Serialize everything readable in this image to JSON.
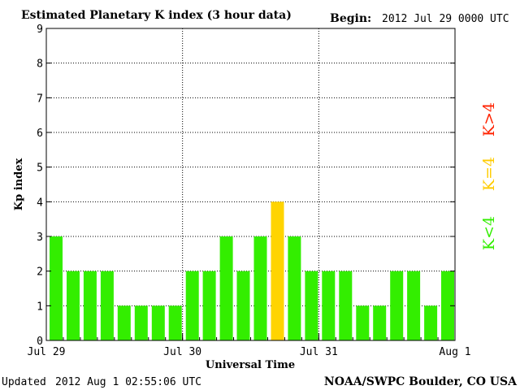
{
  "header": {
    "title": "Estimated Planetary K index (3 hour data)",
    "begin_label": "Begin:",
    "begin_value": "2012 Jul 29 0000 UTC"
  },
  "footer": {
    "updated_label": "Updated",
    "updated_value": "2012 Aug  1 02:55:06 UTC",
    "credit": "NOAA/SWPC Boulder, CO USA"
  },
  "legend": {
    "low": {
      "text": "K<4",
      "color": "#33ee00"
    },
    "mid": {
      "text": "K=4",
      "color": "#ffcc00"
    },
    "high": {
      "text": "K>4",
      "color": "#ff2200"
    }
  },
  "chart_data": {
    "type": "bar",
    "title": "Estimated Planetary K index (3 hour data)",
    "xlabel": "Universal Time",
    "ylabel": "Kp index",
    "ylim": [
      0,
      9
    ],
    "yticks": [
      0,
      1,
      2,
      3,
      4,
      5,
      6,
      7,
      8,
      9
    ],
    "xtick_labels": [
      "Jul 29",
      "Jul 30",
      "Jul 31",
      "Aug 1"
    ],
    "interval_hours": 3,
    "grid": "dotted",
    "values": [
      3,
      2,
      2,
      2,
      1,
      1,
      1,
      1,
      2,
      2,
      3,
      2,
      3,
      4,
      3,
      2,
      2,
      2,
      1,
      1,
      2,
      2,
      1,
      2
    ],
    "colors": {
      "below4": "#33ee00",
      "equal4": "#ffd400",
      "above4": "#ff2200"
    }
  }
}
